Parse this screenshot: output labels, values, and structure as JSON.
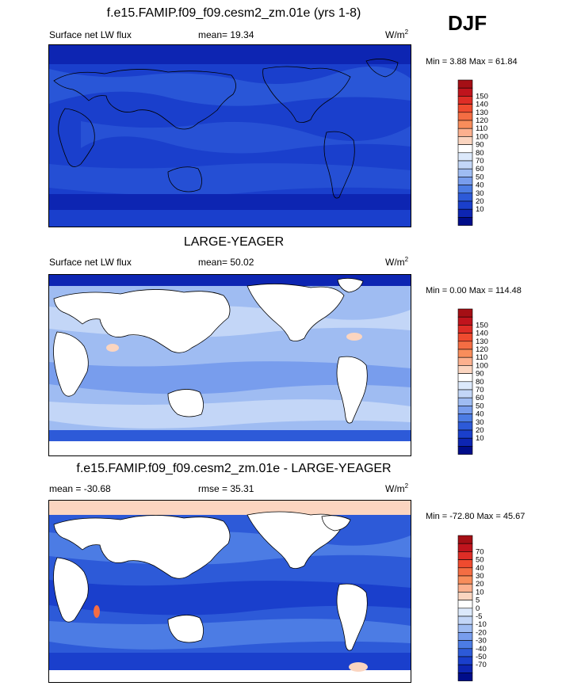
{
  "season": "DJF",
  "chart_data": [
    {
      "type": "heatmap",
      "title": "f.e15.FAMIP.f09_f09.cesm2_zm.01e (yrs 1-8)",
      "left_label": "Surface net LW flux",
      "center_label": "mean=  19.34",
      "units": "W/m",
      "units_exp": "2",
      "minmax": "Min =   3.88 Max =  61.84",
      "mean": 19.34,
      "min": 3.88,
      "max": 61.84,
      "levels": [
        "150",
        "140",
        "130",
        "120",
        "110",
        "100",
        "90",
        "80",
        "70",
        "60",
        "50",
        "40",
        "30",
        "20",
        "10"
      ],
      "colors": [
        "#a50f15",
        "#c0141d",
        "#de2d26",
        "#ef4b2f",
        "#f46d43",
        "#f88d5b",
        "#fcb08e",
        "#fbd5c0",
        "#ffffff",
        "#dce9fb",
        "#c3d6f7",
        "#9fbcf2",
        "#789ded",
        "#4c7ce4",
        "#2d5ad8",
        "#1a3fcc",
        "#0d25b2",
        "#000d8a"
      ]
    },
    {
      "type": "heatmap",
      "title": "LARGE-YEAGER",
      "left_label": "Surface net LW flux",
      "center_label": "mean=  50.02",
      "units": "W/m",
      "units_exp": "2",
      "minmax": "Min =   0.00 Max = 114.48",
      "mean": 50.02,
      "min": 0.0,
      "max": 114.48,
      "levels": [
        "150",
        "140",
        "130",
        "120",
        "110",
        "100",
        "90",
        "80",
        "70",
        "60",
        "50",
        "40",
        "30",
        "20",
        "10"
      ],
      "colors": [
        "#a50f15",
        "#c0141d",
        "#de2d26",
        "#ef4b2f",
        "#f46d43",
        "#f88d5b",
        "#fcb08e",
        "#fbd5c0",
        "#ffffff",
        "#dce9fb",
        "#c3d6f7",
        "#9fbcf2",
        "#789ded",
        "#4c7ce4",
        "#2d5ad8",
        "#1a3fcc",
        "#0d25b2",
        "#000d8a"
      ]
    },
    {
      "type": "heatmap",
      "title": "f.e15.FAMIP.f09_f09.cesm2_zm.01e - LARGE-YEAGER",
      "left_label": "mean = -30.68",
      "center_label": "rmse =  35.31",
      "units": "W/m",
      "units_exp": "2",
      "minmax": "Min = -72.80 Max =  45.67",
      "mean": -30.68,
      "rmse": 35.31,
      "min": -72.8,
      "max": 45.67,
      "levels": [
        "70",
        "50",
        "40",
        "30",
        "20",
        "10",
        "5",
        "0",
        "-5",
        "-10",
        "-20",
        "-30",
        "-40",
        "-50",
        "-70"
      ],
      "colors": [
        "#a50f15",
        "#c0141d",
        "#de2d26",
        "#ef4b2f",
        "#f46d43",
        "#f88d5b",
        "#fcb08e",
        "#fbd5c0",
        "#ffffff",
        "#dce9fb",
        "#c3d6f7",
        "#9fbcf2",
        "#789ded",
        "#4c7ce4",
        "#2d5ad8",
        "#1a3fcc",
        "#0d25b2",
        "#000d8a"
      ]
    }
  ]
}
